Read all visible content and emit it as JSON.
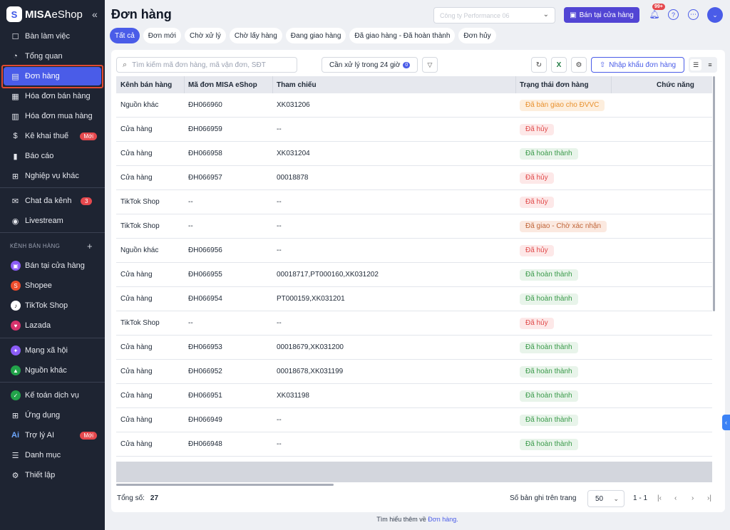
{
  "brand": {
    "logo_letter": "S",
    "name_bold": "MISA",
    "name_light": "eShop"
  },
  "sidebar": {
    "collapse_icon": "double-chevron-left-icon",
    "items": [
      {
        "label": "Bàn làm việc",
        "icon": "desk-icon"
      },
      {
        "label": "Tổng quan",
        "icon": "gauge-icon"
      },
      {
        "label": "Đơn hàng",
        "icon": "order-icon",
        "active": true
      },
      {
        "label": "Hóa đơn bán hàng",
        "icon": "invoice-icon"
      },
      {
        "label": "Hóa đơn mua hàng",
        "icon": "purchase-invoice-icon"
      },
      {
        "label": "Kê khai thuế",
        "icon": "tax-icon",
        "badge": "Mới"
      },
      {
        "label": "Báo cáo",
        "icon": "chart-icon"
      },
      {
        "label": "Nghiệp vụ khác",
        "icon": "apps-icon"
      },
      {
        "label": "Chat đa kênh",
        "icon": "chat-icon",
        "count": "3"
      },
      {
        "label": "Livestream",
        "icon": "live-icon"
      }
    ],
    "section_label": "KÊNH BÁN HÀNG",
    "channels": [
      {
        "label": "Bán tại cửa hàng",
        "color": "#8b5cf6",
        "icon": "store-icon"
      },
      {
        "label": "Shopee",
        "color": "#ee4d2d",
        "icon": "shopee-icon"
      },
      {
        "label": "TikTok Shop",
        "color": "#111111",
        "icon": "tiktok-icon"
      },
      {
        "label": "Lazada",
        "color": "#d6336c",
        "icon": "lazada-icon"
      }
    ],
    "extra": [
      {
        "label": "Mạng xã hội",
        "color": "#8b5cf6",
        "icon": "social-icon"
      },
      {
        "label": "Nguồn khác",
        "color": "#22a34a",
        "icon": "other-source-icon"
      }
    ],
    "bottom": [
      {
        "label": "Kế toán dịch vụ",
        "icon": "accounting-icon"
      },
      {
        "label": "Ứng dụng",
        "icon": "grid-icon"
      },
      {
        "label": "Trợ lý AI",
        "icon": "ai-icon",
        "badge": "Mới"
      },
      {
        "label": "Danh mục",
        "icon": "list-icon"
      },
      {
        "label": "Thiết lập",
        "icon": "settings-icon"
      }
    ]
  },
  "header": {
    "title": "Đơn hàng",
    "company": "Công ty Performance 06",
    "store_button": "Bán tại cửa hàng",
    "notif_badge": "99+"
  },
  "tabs": [
    "Tất cả",
    "Đơn mới",
    "Chờ xử lý",
    "Chờ lấy hàng",
    "Đang giao hàng",
    "Đã giao hàng - Đã hoàn thành",
    "Đơn hủy"
  ],
  "toolbar": {
    "search_placeholder": "Tìm kiếm mã đơn hàng, mã vận đơn, SĐT",
    "pending_label": "Cần xử lý trong 24 giờ",
    "pending_count": "0",
    "import_label": "Nhập khẩu đơn hàng"
  },
  "table": {
    "headers": {
      "channel": "Kênh bán hàng",
      "code": "Mã đơn MISA eShop",
      "ref": "Tham chiếu",
      "status": "Trạng thái đơn hàng",
      "actions": "Chức năng"
    },
    "rows": [
      {
        "channel": "Nguồn khác",
        "code": "ĐH066960",
        "ref": "XK031206",
        "status": "Đã bàn giao cho ĐVVC",
        "tone": "orange"
      },
      {
        "channel": "Cửa hàng",
        "code": "ĐH066959",
        "ref": "--",
        "status": "Đã hủy",
        "tone": "red"
      },
      {
        "channel": "Cửa hàng",
        "code": "ĐH066958",
        "ref": "XK031204",
        "status": "Đã hoàn thành",
        "tone": "green"
      },
      {
        "channel": "Cửa hàng",
        "code": "ĐH066957",
        "ref": "00018878",
        "status": "Đã hủy",
        "tone": "red"
      },
      {
        "channel": "TikTok Shop",
        "code": "--",
        "ref": "--",
        "status": "Đã hủy",
        "tone": "red"
      },
      {
        "channel": "TikTok Shop",
        "code": "--",
        "ref": "--",
        "status": "Đã giao - Chờ xác nhận",
        "tone": "peach"
      },
      {
        "channel": "Nguồn khác",
        "code": "ĐH066956",
        "ref": "--",
        "status": "Đã hủy",
        "tone": "red"
      },
      {
        "channel": "Cửa hàng",
        "code": "ĐH066955",
        "ref": "00018717,PT000160,XK031202",
        "status": "Đã hoàn thành",
        "tone": "green"
      },
      {
        "channel": "Cửa hàng",
        "code": "ĐH066954",
        "ref": "PT000159,XK031201",
        "status": "Đã hoàn thành",
        "tone": "green"
      },
      {
        "channel": "TikTok Shop",
        "code": "--",
        "ref": "--",
        "status": "Đã hủy",
        "tone": "red"
      },
      {
        "channel": "Cửa hàng",
        "code": "ĐH066953",
        "ref": "00018679,XK031200",
        "status": "Đã hoàn thành",
        "tone": "green"
      },
      {
        "channel": "Cửa hàng",
        "code": "ĐH066952",
        "ref": "00018678,XK031199",
        "status": "Đã hoàn thành",
        "tone": "green"
      },
      {
        "channel": "Cửa hàng",
        "code": "ĐH066951",
        "ref": "XK031198",
        "status": "Đã hoàn thành",
        "tone": "green"
      },
      {
        "channel": "Cửa hàng",
        "code": "ĐH066949",
        "ref": "--",
        "status": "Đã hoàn thành",
        "tone": "green"
      },
      {
        "channel": "Cửa hàng",
        "code": "ĐH066948",
        "ref": "--",
        "status": "Đã hoàn thành",
        "tone": "green"
      }
    ]
  },
  "footer": {
    "total_label": "Tổng số:",
    "total_value": "27",
    "per_page_label": "Số bản ghi trên trang",
    "per_page_value": "50",
    "range": "1 - 1"
  },
  "learn_more": {
    "prefix": "Tìm hiểu thêm về",
    "link": "Đơn hàng."
  }
}
